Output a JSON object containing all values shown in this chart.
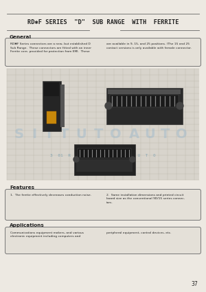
{
  "title": "RD✱F SERIES  \"D\"  SUB RANGE  WITH  FERRITE",
  "bg_color": "#ede9e2",
  "page_bg": "#e8e4dc",
  "page_number": "37",
  "section_general": "General",
  "general_text_col1": "RD✱F Series connectors are a new, but established D\nSub Range.  These connectors are fitted with an inner\nFerrite core, provided for protection from EMI.  These",
  "general_text_col2": "are available in 9, 15, and 25 positions. (The 15 and 25\ncontact versions is only available with female connector.",
  "section_features": "Features",
  "features_text_col1": "1.  The ferrite effectively decreases conduction noise.",
  "features_text_col2": "2.  Same installation dimensions and printed circuit\nboard size as the conventional 9D/15 series connec-\ntors.",
  "section_applications": "Applications",
  "apps_text_col1": "Communications equipment makers, and various\nelectronic equipment including computers and",
  "apps_text_col2": "peripheral equipment, control devices, etc.",
  "grid_color": "#b8b4a8",
  "grid_bg": "#d8d4cc",
  "line_color": "#666666",
  "text_color": "#222222",
  "box_edge_color": "#777777",
  "box_face_color": "#e4e0d8",
  "wm_color1": "#8ab0cc",
  "wm_color2": "#6090aa"
}
